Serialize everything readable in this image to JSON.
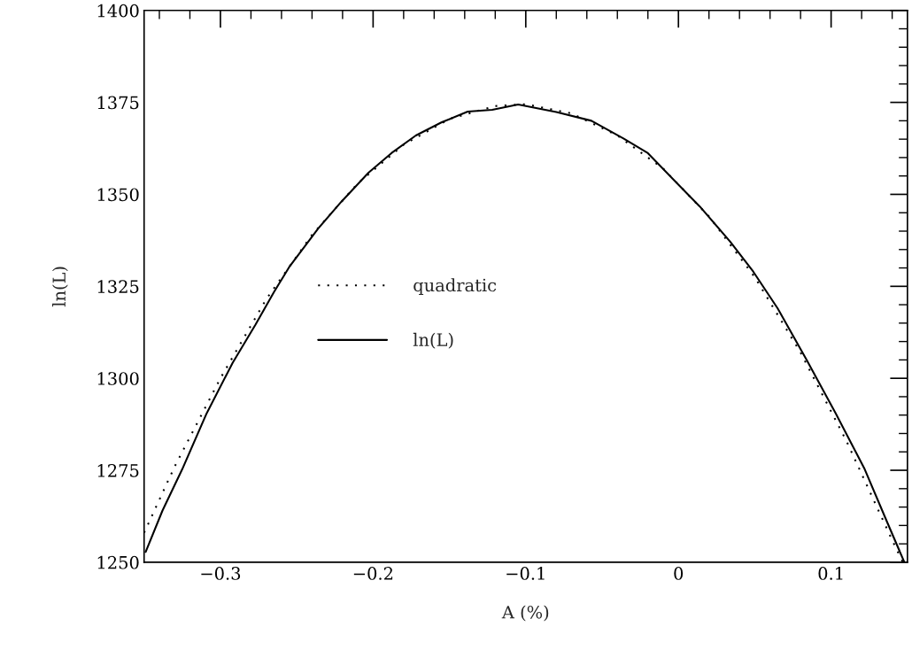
{
  "chart_data": {
    "type": "line",
    "xlabel": "A (%)",
    "ylabel": "ln(L)",
    "xlim": [
      -0.35,
      0.15
    ],
    "ylim": [
      1250,
      1400
    ],
    "xticks": [
      {
        "value": -0.3,
        "label": "−0.3"
      },
      {
        "value": -0.2,
        "label": "−0.2"
      },
      {
        "value": -0.1,
        "label": "−0.1"
      },
      0,
      0.1
    ],
    "yticks": [
      1250,
      1275,
      1300,
      1325,
      1350,
      1375,
      1400
    ],
    "grid": false,
    "legend": "center",
    "marker": "none",
    "series": [
      {
        "name": "quadratic",
        "color": "#000000",
        "line_style": "dotted",
        "x": [
          -0.35,
          -0.33,
          -0.3,
          -0.27,
          -0.24,
          -0.21,
          -0.18,
          -0.15,
          -0.12,
          -0.1,
          -0.07,
          -0.04,
          -0.01,
          0.02,
          0.05,
          0.08,
          0.11,
          0.14,
          0.147
        ],
        "values": [
          1258,
          1276,
          1300,
          1321.5,
          1339,
          1353,
          1363.5,
          1370.5,
          1374,
          1374.5,
          1372,
          1366,
          1357,
          1344,
          1327.5,
          1307,
          1283,
          1256,
          1250
        ]
      },
      {
        "name": "ln(L)",
        "color": "#000000",
        "line_style": "solid",
        "x": [
          -0.349,
          -0.338,
          -0.325,
          -0.309,
          -0.292,
          -0.277,
          -0.265,
          -0.255,
          -0.236,
          -0.221,
          -0.203,
          -0.188,
          -0.172,
          -0.155,
          -0.138,
          -0.122,
          -0.105,
          -0.08,
          -0.057,
          -0.036,
          -0.02,
          -0.003,
          0.014,
          0.034,
          0.049,
          0.065,
          0.084,
          0.103,
          0.122,
          0.136,
          0.148
        ],
        "values": [
          1252.8,
          1264,
          1275.3,
          1290.5,
          1304.2,
          1314.6,
          1323.4,
          1330.2,
          1340.7,
          1347.9,
          1355.9,
          1361.2,
          1366,
          1369.6,
          1372.5,
          1373,
          1374.4,
          1372.4,
          1370,
          1365.2,
          1361.2,
          1353.9,
          1346.7,
          1337.1,
          1329,
          1319,
          1305,
          1290.5,
          1275.3,
          1261.6,
          1250
        ]
      }
    ]
  }
}
